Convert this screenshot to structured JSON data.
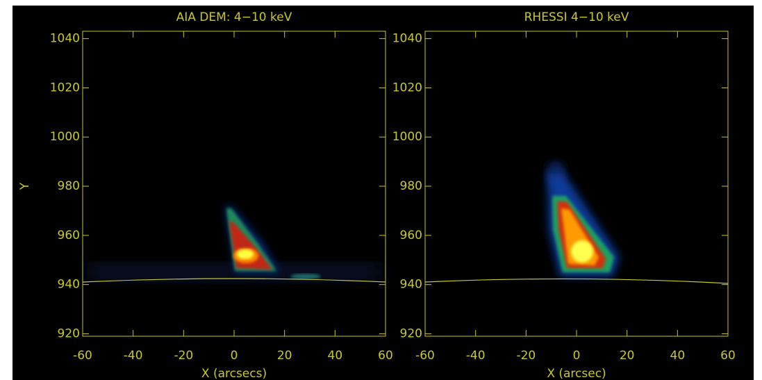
{
  "chart_data": [
    {
      "type": "image",
      "title": "AIA DEM: 4−10 keV",
      "xlabel": "X (arcsecs)",
      "ylabel": "Y",
      "xlim": [
        -60,
        60
      ],
      "ylim": [
        919,
        1043
      ],
      "xticks": [
        -60,
        -40,
        -20,
        0,
        20,
        40,
        60
      ],
      "yticks": [
        920,
        940,
        960,
        980,
        1000,
        1020,
        1040
      ],
      "color": "#c8c832"
    },
    {
      "type": "image",
      "title": "RHESSI 4−10 keV",
      "xlabel": "X (arcsec)",
      "xlim": [
        -60,
        60
      ],
      "ylim": [
        919,
        1043
      ],
      "xticks": [
        -60,
        -40,
        -20,
        0,
        20,
        40,
        60
      ],
      "yticks": [
        920,
        940,
        960,
        980,
        1000,
        1020,
        1040
      ],
      "color": "#c8c832"
    }
  ]
}
